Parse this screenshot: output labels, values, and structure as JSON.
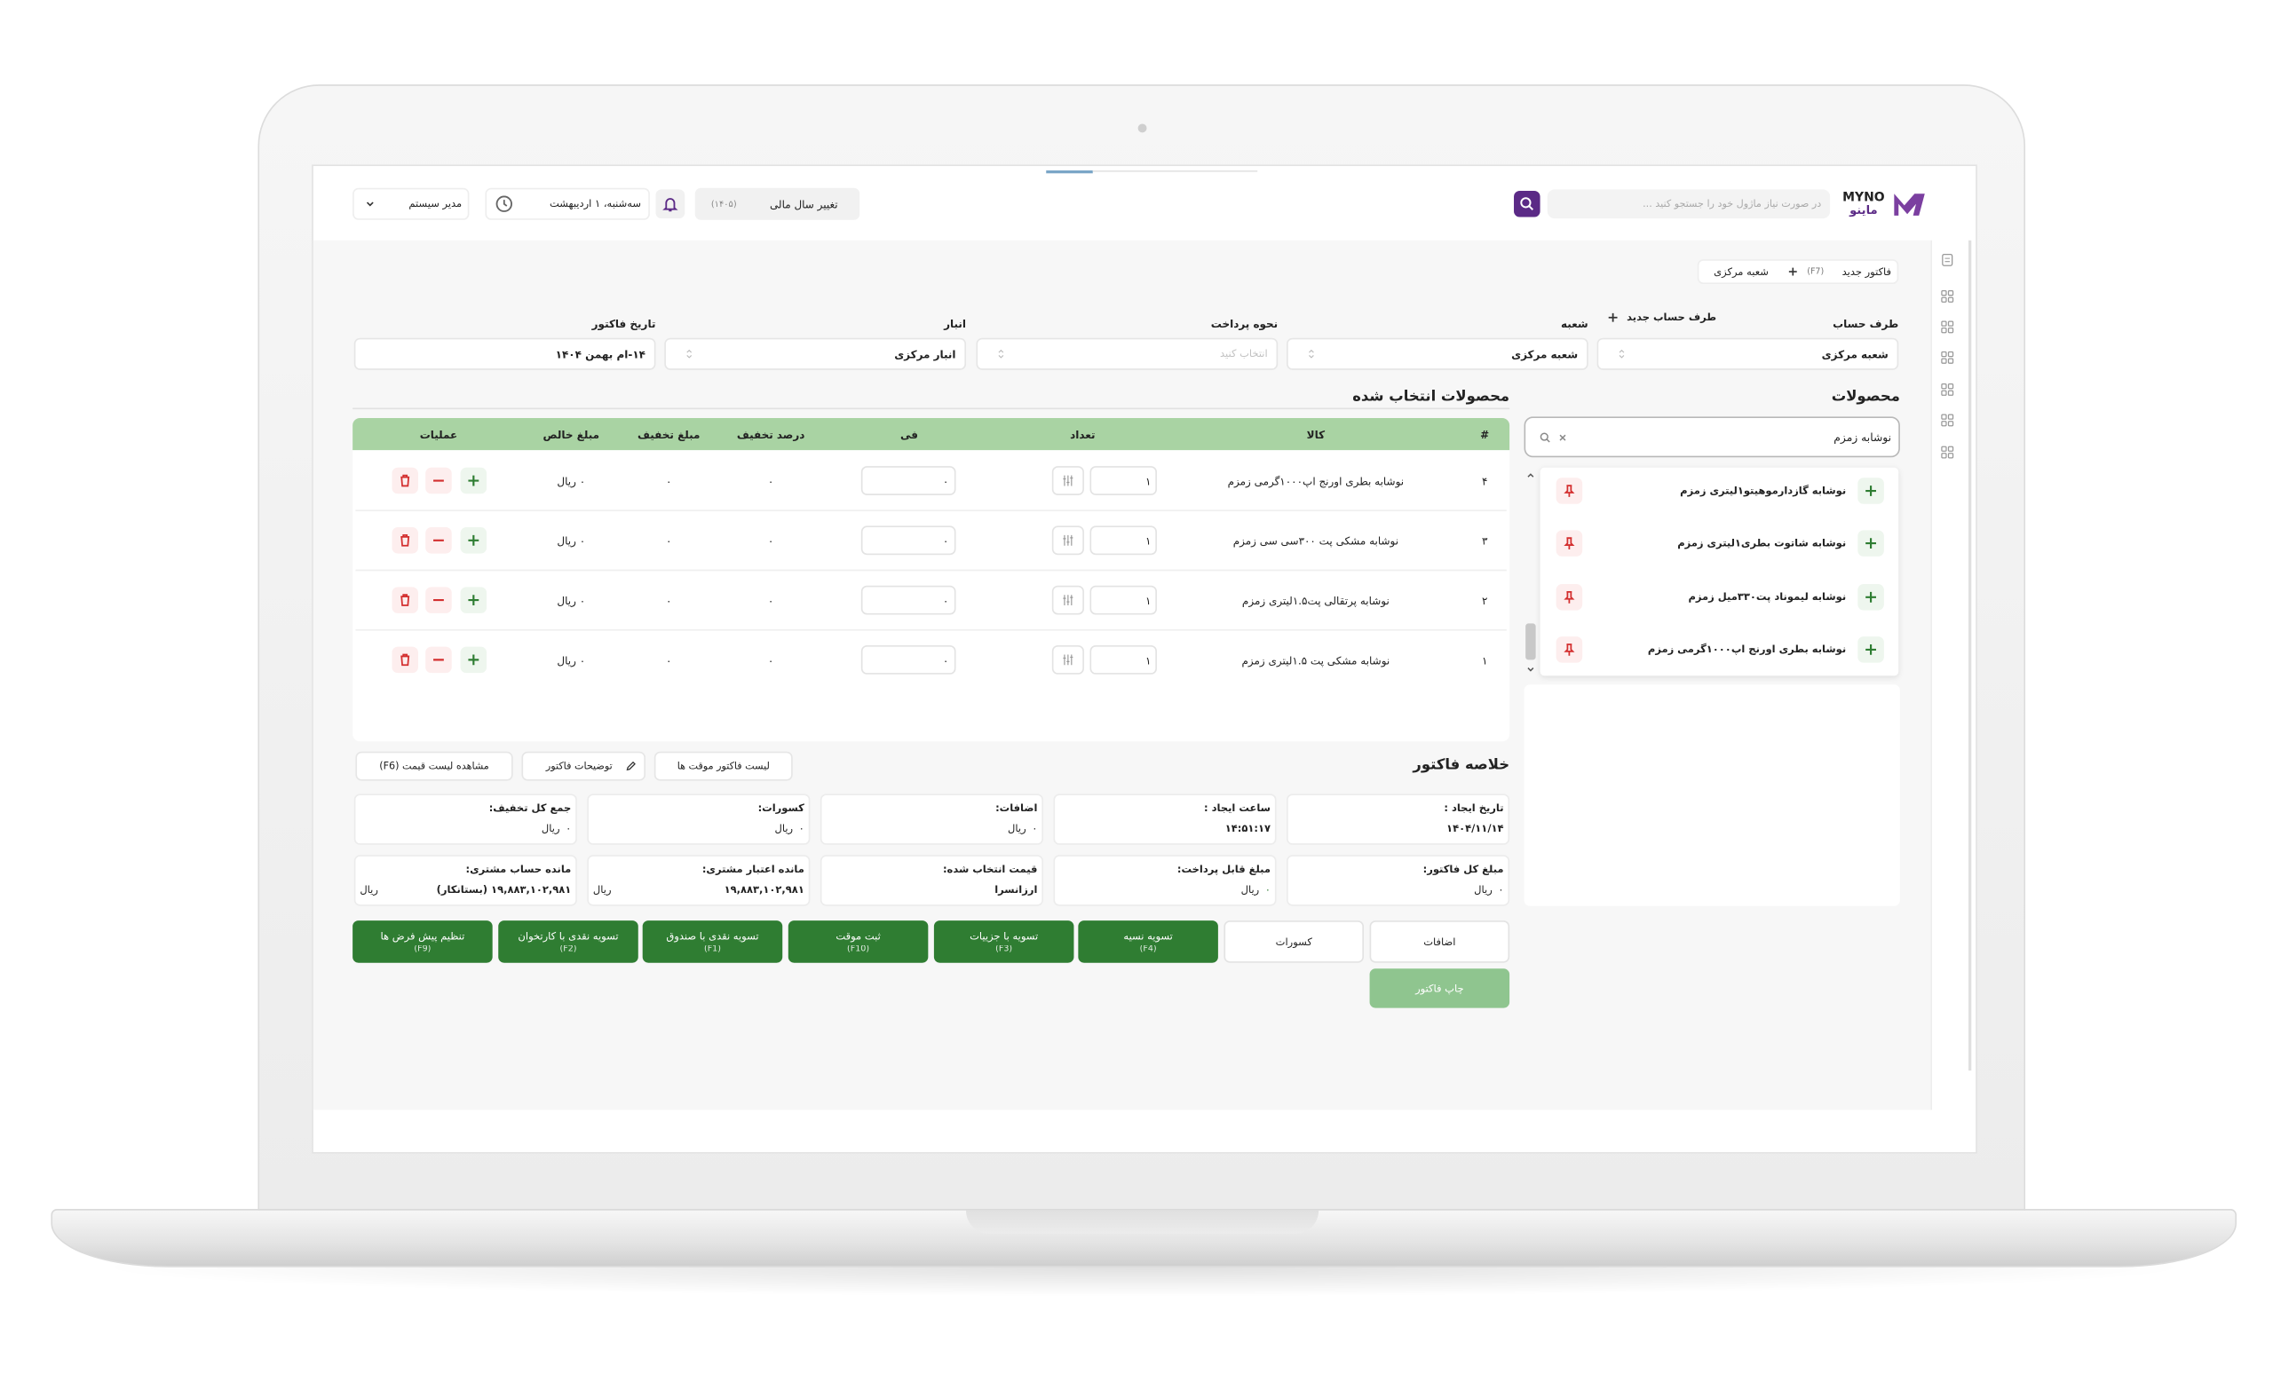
{
  "header": {
    "logo": "MYNO",
    "logo_fa": "ماینو",
    "search_placeholder": "در صورت نیاز ماژول خود را جستجو کنید ...",
    "fiscal_year": "تغییر سال مالی",
    "fiscal_year_value": "(۱۴۰۵)",
    "date": "سه‌شنبه، ۱ اردیبهشت",
    "user": "مدیر سیستم"
  },
  "tabs": {
    "new_invoice": "فاکتور جدید",
    "shortcut": "(F7)",
    "branch": "شعبه مرکزی"
  },
  "form": {
    "new_account": "طرف حساب جدید",
    "fields": [
      {
        "label": "طرف حساب",
        "value": "شعبه مرکزی"
      },
      {
        "label": "شعبه",
        "value": "شعبه مرکزی"
      },
      {
        "label": "نحوه پرداخت",
        "placeholder": "انتخاب کنید"
      },
      {
        "label": "انبار",
        "value": "انبار مرکزی"
      },
      {
        "label": "تاریخ فاکتور",
        "value": "۱۴-ام بهمن ۱۴۰۴"
      }
    ]
  },
  "products": {
    "title": "محصولات",
    "search": "نوشابه زمزم",
    "items": [
      "نوشابه گازدارموهیتو۱لیتری زمزم",
      "نوشابه شاتوت بطری۱لیتری زمزم",
      "نوشابه لیموناد پت۳۳۰میل زمزم",
      "نوشابه بطری اورنج اپ۱۰۰۰گرمی زمزم"
    ]
  },
  "selected": {
    "title": "محصولات انتخاب شده",
    "columns": [
      "#",
      "کالا",
      "تعداد",
      "فی",
      "درصد تخفیف",
      "مبلغ تخفیف",
      "مبلغ خالص",
      "عملیات"
    ],
    "rows": [
      [
        "۴",
        "نوشابه بطری اورنج اپ۱۰۰۰گرمی زمزم",
        "۱",
        "۰",
        "۰",
        "۰",
        "۰ ریال"
      ],
      [
        "۳",
        "نوشابه مشکی پت ۳۰۰سی سی زمزم",
        "۱",
        "۰",
        "۰",
        "۰",
        "۰ ریال"
      ],
      [
        "۲",
        "نوشابه پرتقالی پت۱.۵لیتری زمزم",
        "۱",
        "۰",
        "۰",
        "۰",
        "۰ ریال"
      ],
      [
        "۱",
        "نوشابه مشکی پت ۱.۵لیتری زمزم",
        "۱",
        "۰",
        "۰",
        "۰",
        "۰ ریال"
      ]
    ]
  },
  "summary": {
    "title": "خلاصه فاکتور",
    "actions": [
      "لیست فاکتور موقت ها",
      "توضیحات فاکتور",
      "مشاهده لیست قیمت (F6)"
    ],
    "cells": [
      {
        "label": "تاریخ ایجاد :",
        "value": "۱۴۰۴/۱۱/۱۴"
      },
      {
        "label": "ساعت ایجاد :",
        "value": "۱۴:۵۱:۱۷"
      },
      {
        "label": "اضافات:",
        "value": "۰",
        "unit": "ریال"
      },
      {
        "label": "کسورات:",
        "value": "۰",
        "unit": "ریال"
      },
      {
        "label": "جمع کل تخفیف:",
        "value": "۰",
        "unit": "ریال"
      },
      {
        "label": "مبلغ کل فاکتور:",
        "value": "۰",
        "unit": "ریال"
      },
      {
        "label": "مبلغ قابل پرداخت:",
        "value": "۰",
        "unit": "ریال"
      },
      {
        "label": "قیمت انتخاب شده:",
        "value": "ارزانسرا"
      },
      {
        "label": "مانده اعتبار مشتری:",
        "value": "۱۹,۸۸۳,۱۰۲,۹۸۱",
        "unit": "ریال"
      },
      {
        "label": "مانده حساب مشتری:",
        "value": "۱۹,۸۸۳,۱۰۲,۹۸۱ (بستانکار)",
        "unit": "ریال"
      }
    ],
    "buttons": [
      {
        "label": "اضافات"
      },
      {
        "label": "کسورات"
      },
      {
        "label": "تسویه نسیه",
        "shortcut": "(F4)"
      },
      {
        "label": "تسویه با جزییات",
        "shortcut": "(F3)"
      },
      {
        "label": "ثبت موقت",
        "shortcut": "(F10)"
      },
      {
        "label": "تسویه نقدی با صندوق",
        "shortcut": "(F1)"
      },
      {
        "label": "تسویه نقدی با کارتخوان",
        "shortcut": "(F2)"
      },
      {
        "label": "تنظیم پیش فرض ها",
        "shortcut": "(F9)"
      }
    ],
    "print": "چاپ فاکتور"
  }
}
